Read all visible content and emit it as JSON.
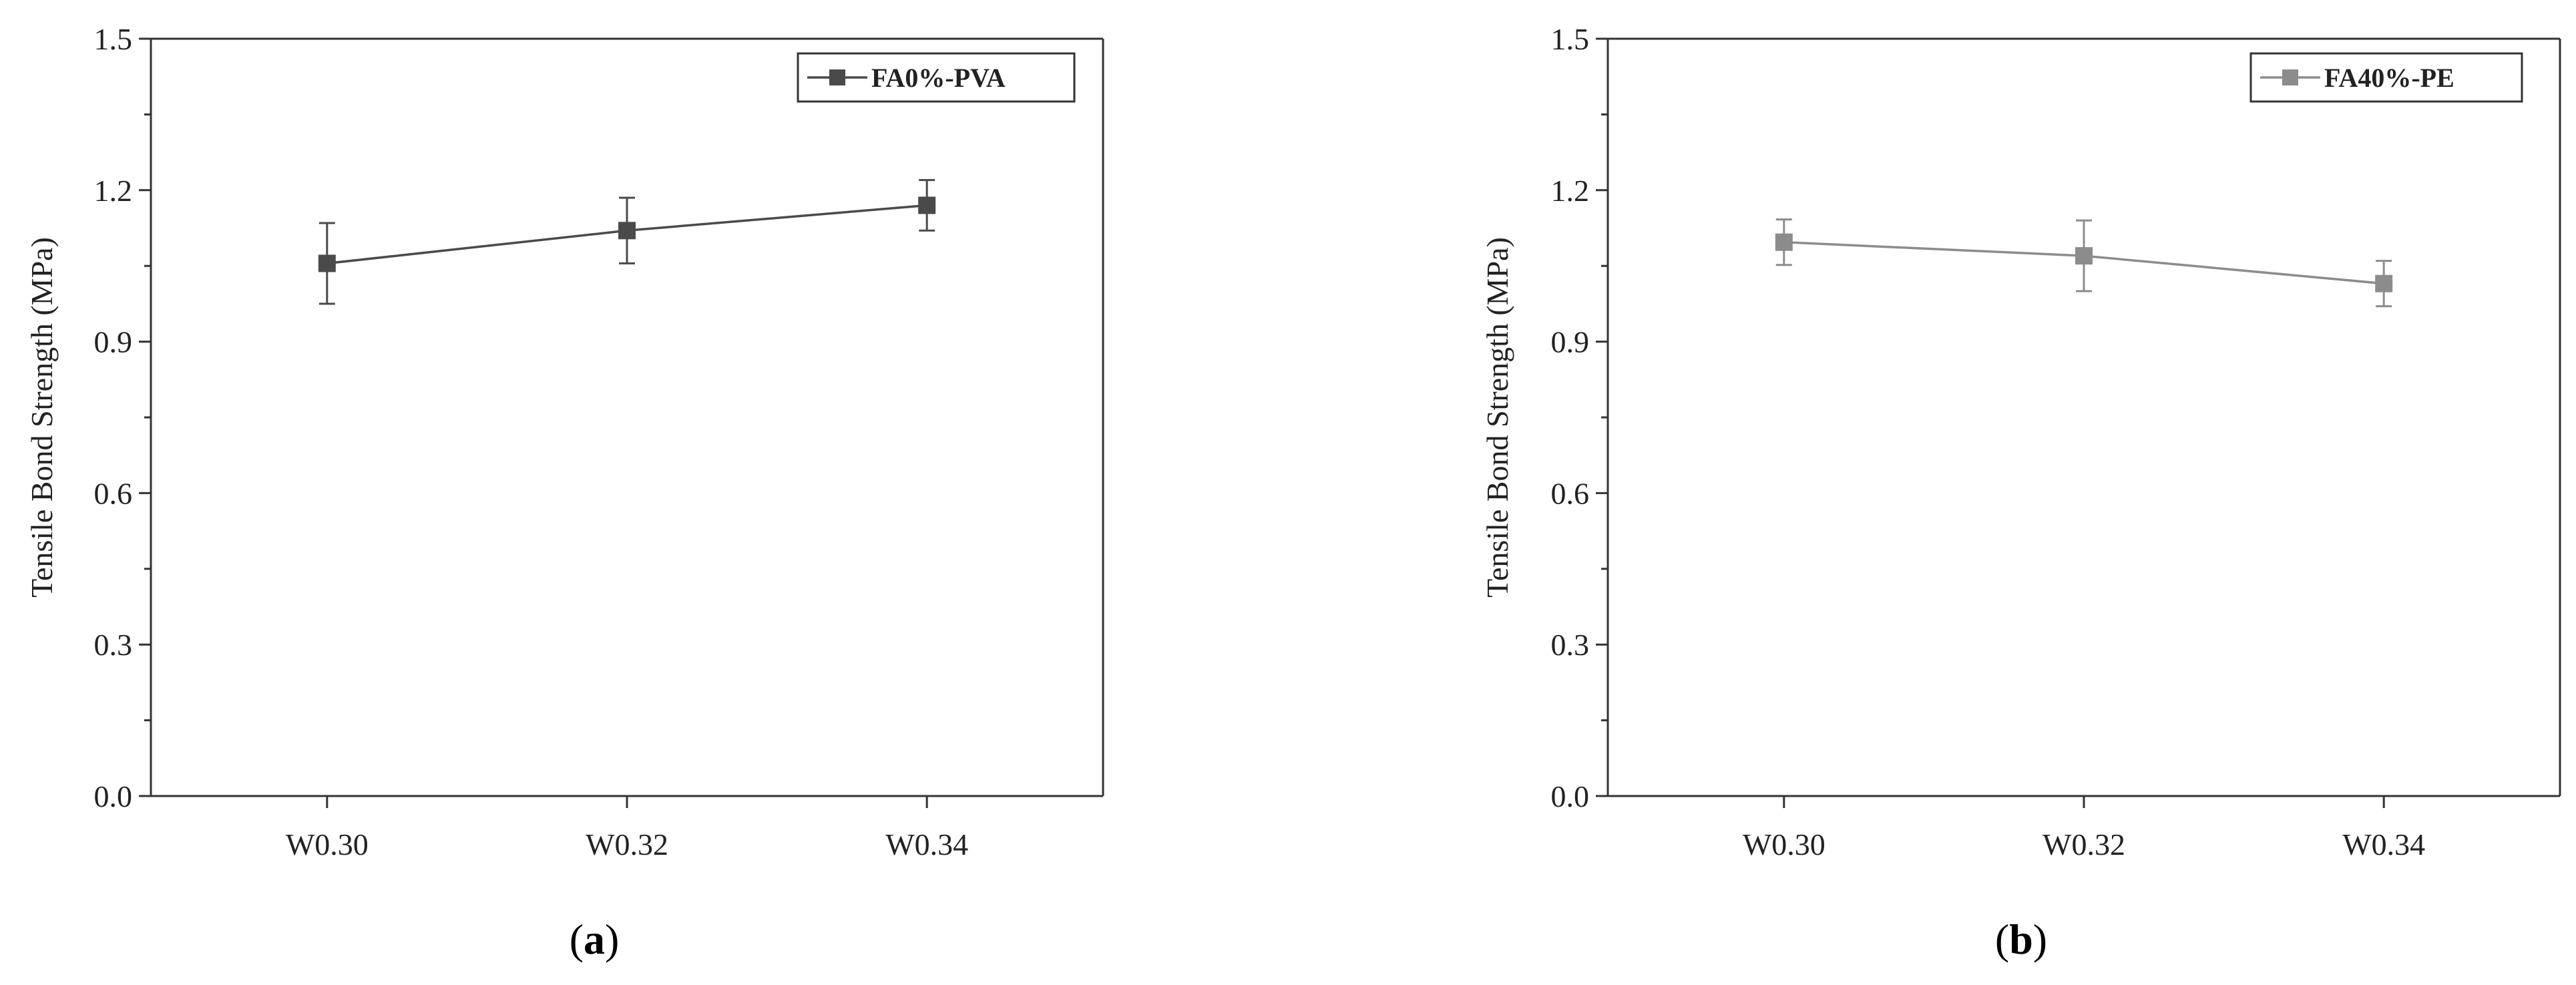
{
  "chart_data": [
    {
      "type": "line",
      "panel_caption": "a",
      "categories": [
        "W0.30",
        "W0.32",
        "W0.34"
      ],
      "series": [
        {
          "name": "FA0%-PVA",
          "values": [
            1.055,
            1.12,
            1.17
          ],
          "error": [
            0.08,
            0.065,
            0.05
          ],
          "color": "#4a4a4a"
        }
      ],
      "ylabel": "Tensile Bond Strength (MPa)",
      "xlabel": "",
      "ylim": [
        0,
        1.5
      ],
      "yticks": [
        "0.0",
        "0.3",
        "0.6",
        "0.9",
        "1.2",
        "1.5"
      ],
      "grid": false,
      "legend": "top-right"
    },
    {
      "type": "line",
      "panel_caption": "b",
      "categories": [
        "W0.30",
        "W0.32",
        "W0.34"
      ],
      "series": [
        {
          "name": "FA40%-PE",
          "values": [
            1.097,
            1.07,
            1.015
          ],
          "error": [
            0.045,
            0.07,
            0.045
          ],
          "color": "#8c8c8c"
        }
      ],
      "ylabel": "Tensile Bond Strength (MPa)",
      "xlabel": "",
      "ylim": [
        0,
        1.5
      ],
      "yticks": [
        "0.0",
        "0.3",
        "0.6",
        "0.9",
        "1.2",
        "1.5"
      ],
      "grid": false,
      "legend": "top-right"
    }
  ]
}
